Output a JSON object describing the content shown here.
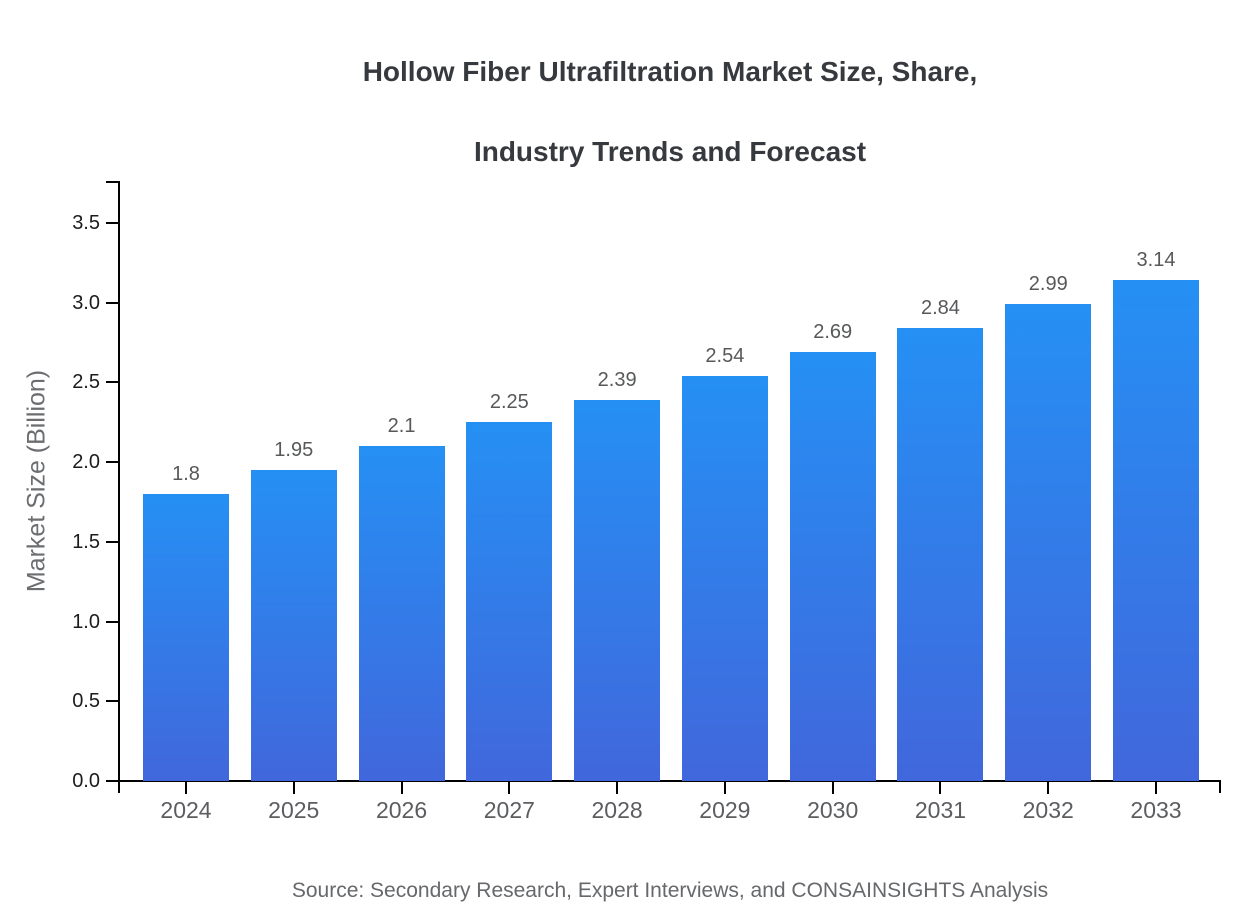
{
  "title": {
    "line1": "Hollow Fiber Ultrafiltration Market Size, Share,",
    "line2": "Industry Trends and Forecast"
  },
  "source": "Source: Secondary Research, Expert Interviews, and CONSAINSIGHTS Analysis",
  "chart_data": {
    "type": "bar",
    "title": "Hollow Fiber Ultrafiltration Market Size, Share, Industry Trends and Forecast",
    "categories": [
      "2024",
      "2025",
      "2026",
      "2027",
      "2028",
      "2029",
      "2030",
      "2031",
      "2032",
      "2033"
    ],
    "values": [
      1.8,
      1.95,
      2.1,
      2.25,
      2.39,
      2.54,
      2.69,
      2.84,
      2.99,
      3.14
    ],
    "value_labels": [
      "1.8",
      "1.95",
      "2.1",
      "2.25",
      "2.39",
      "2.54",
      "2.69",
      "2.84",
      "2.99",
      "3.14"
    ],
    "xlabel": "",
    "ylabel": "Market Size (Billion)",
    "ylim": [
      0,
      3.5
    ],
    "ytick_step": 0.5,
    "ytick_labels": [
      "0.0",
      "0.5",
      "1.0",
      "1.5",
      "2.0",
      "2.5",
      "3.0",
      "3.5"
    ],
    "grid": false,
    "legend": null,
    "colors": {
      "bar_gradient_top": "#2590f4",
      "bar_gradient_bottom": "#4167dc",
      "axis": "#000000",
      "title_text": "#36393d",
      "ytick_text": "#1c1c1c",
      "xtick_text": "#5b5d60",
      "value_label_text": "#56585a",
      "axis_title_text": "#6b6d70",
      "source_text": "#66686b"
    }
  }
}
